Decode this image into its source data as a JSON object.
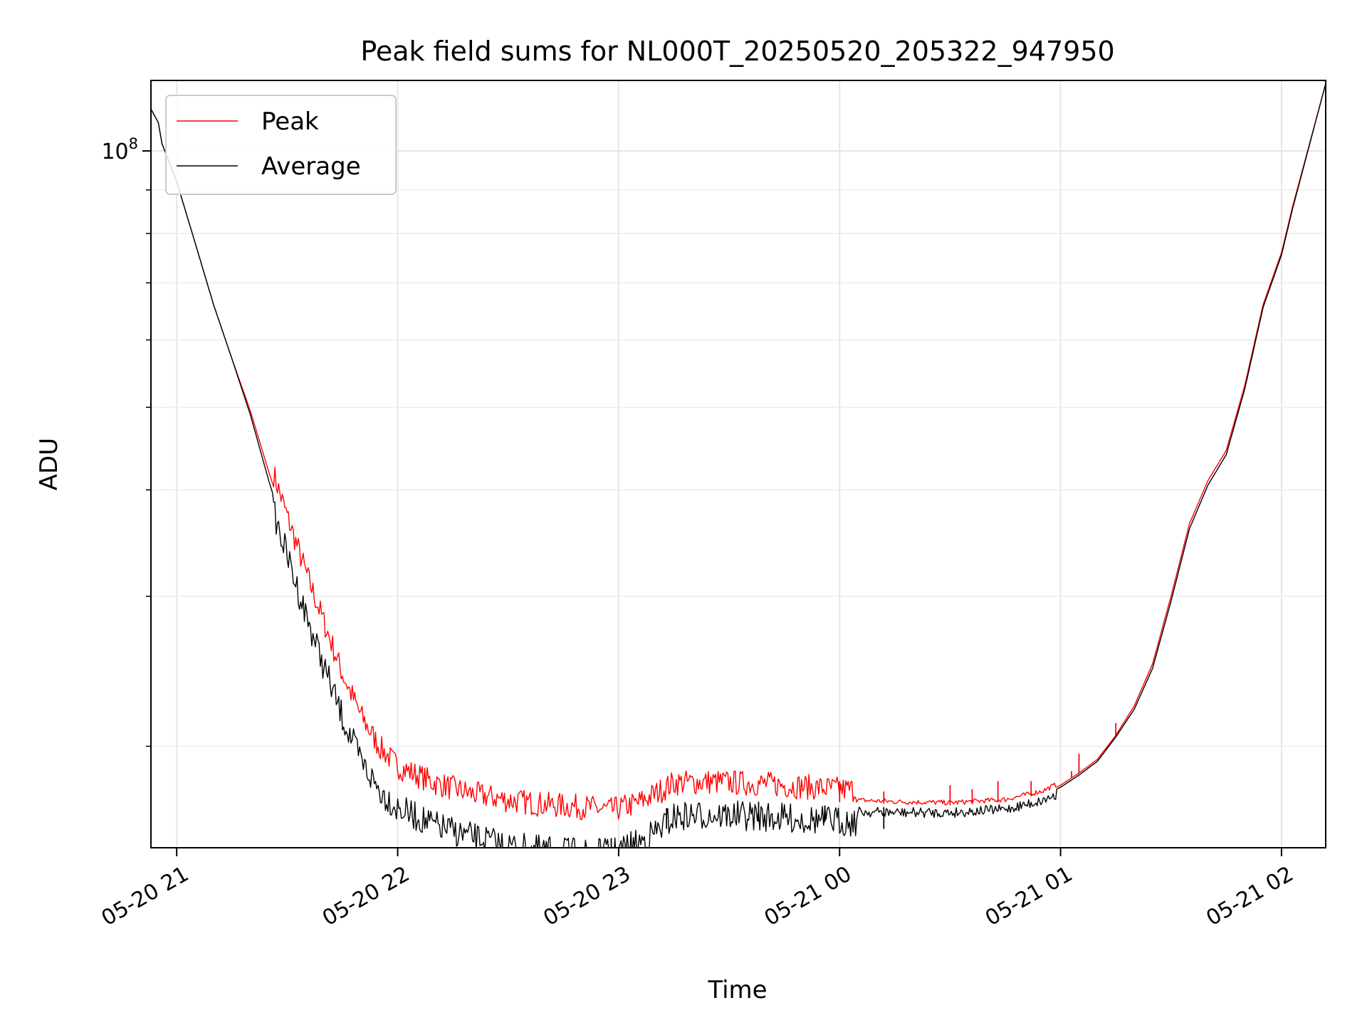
{
  "chart_data": {
    "type": "line",
    "title": "Peak field sums for NL000T_20250520_205322_947950",
    "xlabel": "Time",
    "ylabel": "ADU",
    "y_scale": "log",
    "ylim": [
      15200000,
      121000000
    ],
    "xlim": [
      "2025-05-20 20:53",
      "2025-05-21 02:12"
    ],
    "grid": true,
    "legend_position": "top-left",
    "x_ticks": [
      {
        "t": "2025-05-20 21:00",
        "label": "05-20 21"
      },
      {
        "t": "2025-05-20 22:00",
        "label": "05-20 22"
      },
      {
        "t": "2025-05-20 23:00",
        "label": "05-20 23"
      },
      {
        "t": "2025-05-21 00:00",
        "label": "05-21 00"
      },
      {
        "t": "2025-05-21 01:00",
        "label": "05-21 01"
      },
      {
        "t": "2025-05-21 02:00",
        "label": "05-21 02"
      }
    ],
    "y_major_ticks": [
      {
        "v": 100000000,
        "base": "10",
        "exp": "8"
      }
    ],
    "y_minor_ticks": [
      20000000,
      30000000,
      40000000,
      50000000,
      60000000,
      70000000,
      80000000,
      90000000
    ],
    "series": [
      {
        "name": "Peak",
        "color": "#ff0000",
        "points": [
          [
            "2025-05-20 20:53",
            112000000
          ],
          [
            "2025-05-20 20:55",
            108000000
          ],
          [
            "2025-05-20 20:56",
            102000000
          ],
          [
            "2025-05-20 21:00",
            92000000
          ],
          [
            "2025-05-20 21:05",
            78000000
          ],
          [
            "2025-05-20 21:10",
            66000000
          ],
          [
            "2025-05-20 21:15",
            57000000
          ],
          [
            "2025-05-20 21:20",
            49500000
          ],
          [
            "2025-05-20 21:25",
            42000000
          ],
          [
            "2025-05-20 21:30",
            36000000
          ],
          [
            "2025-05-20 21:35",
            31000000
          ],
          [
            "2025-05-20 21:40",
            27000000
          ],
          [
            "2025-05-20 21:45",
            23500000
          ],
          [
            "2025-05-20 21:50",
            21000000
          ],
          [
            "2025-05-20 21:55",
            19300000
          ],
          [
            "2025-05-20 22:00",
            18300000
          ],
          [
            "2025-05-20 22:10",
            17500000
          ],
          [
            "2025-05-20 22:20",
            17000000
          ],
          [
            "2025-05-20 22:30",
            16700000
          ],
          [
            "2025-05-20 22:40",
            16500000
          ],
          [
            "2025-05-20 22:50",
            16400000
          ],
          [
            "2025-05-20 22:58",
            16250000
          ],
          [
            "2025-05-20 23:05",
            16550000
          ],
          [
            "2025-05-20 23:10",
            17000000
          ],
          [
            "2025-05-20 23:15",
            17500000
          ],
          [
            "2025-05-20 23:25",
            17550000
          ],
          [
            "2025-05-20 23:40",
            17450000
          ],
          [
            "2025-05-21 00:00",
            17200000
          ],
          [
            "2025-05-21 00:15",
            17100000
          ],
          [
            "2025-05-21 00:30",
            17050000
          ],
          [
            "2025-05-21 00:45",
            17200000
          ],
          [
            "2025-05-21 00:55",
            17600000
          ],
          [
            "2025-05-21 01:00",
            18000000
          ],
          [
            "2025-05-21 01:05",
            18600000
          ],
          [
            "2025-05-21 01:10",
            19300000
          ],
          [
            "2025-05-21 01:15",
            20600000
          ],
          [
            "2025-05-21 01:20",
            22300000
          ],
          [
            "2025-05-21 01:25",
            25000000
          ],
          [
            "2025-05-21 01:30",
            30000000
          ],
          [
            "2025-05-21 01:35",
            36500000
          ],
          [
            "2025-05-21 01:40",
            41000000
          ],
          [
            "2025-05-21 01:45",
            44500000
          ],
          [
            "2025-05-21 01:50",
            53000000
          ],
          [
            "2025-05-21 01:55",
            66000000
          ],
          [
            "2025-05-21 02:00",
            76000000
          ],
          [
            "2025-05-21 02:03",
            86000000
          ],
          [
            "2025-05-21 02:12",
            120000000
          ]
        ],
        "spikes": [
          [
            "2025-05-21 00:00",
            18200000
          ],
          [
            "2025-05-21 00:12",
            17700000
          ],
          [
            "2025-05-21 00:30",
            18000000
          ],
          [
            "2025-05-21 00:36",
            17800000
          ],
          [
            "2025-05-21 00:43",
            18200000
          ],
          [
            "2025-05-21 00:52",
            18200000
          ],
          [
            "2025-05-21 01:03",
            18700000
          ],
          [
            "2025-05-21 01:05",
            19600000
          ],
          [
            "2025-05-21 01:15",
            21300000
          ]
        ]
      },
      {
        "name": "Average",
        "color": "#000000",
        "points": [
          [
            "2025-05-20 20:53",
            112000000
          ],
          [
            "2025-05-20 20:55",
            108000000
          ],
          [
            "2025-05-20 20:56",
            102000000
          ],
          [
            "2025-05-20 21:00",
            92000000
          ],
          [
            "2025-05-20 21:05",
            78000000
          ],
          [
            "2025-05-20 21:10",
            66000000
          ],
          [
            "2025-05-20 21:15",
            57000000
          ],
          [
            "2025-05-20 21:20",
            49000000
          ],
          [
            "2025-05-20 21:25",
            41000000
          ],
          [
            "2025-05-20 21:30",
            34800000
          ],
          [
            "2025-05-20 21:35",
            29800000
          ],
          [
            "2025-05-20 21:40",
            25800000
          ],
          [
            "2025-05-20 21:45",
            22500000
          ],
          [
            "2025-05-20 21:50",
            20000000
          ],
          [
            "2025-05-20 21:55",
            18500000
          ],
          [
            "2025-05-20 22:00",
            17600000
          ],
          [
            "2025-05-20 22:10",
            16800000
          ],
          [
            "2025-05-20 22:20",
            16300000
          ],
          [
            "2025-05-20 22:30",
            15900000
          ],
          [
            "2025-05-20 22:40",
            15700000
          ],
          [
            "2025-05-20 22:50",
            15600000
          ],
          [
            "2025-05-20 22:58",
            15600000
          ],
          [
            "2025-05-20 23:05",
            16000000
          ],
          [
            "2025-05-20 23:10",
            16500000
          ],
          [
            "2025-05-20 23:15",
            17200000
          ],
          [
            "2025-05-20 23:25",
            17300000
          ],
          [
            "2025-05-20 23:40",
            17200000
          ],
          [
            "2025-05-21 00:00",
            17000000
          ],
          [
            "2025-05-21 00:15",
            16950000
          ],
          [
            "2025-05-21 00:30",
            16950000
          ],
          [
            "2025-05-21 00:45",
            17100000
          ],
          [
            "2025-05-21 00:55",
            17500000
          ],
          [
            "2025-05-21 01:00",
            17900000
          ],
          [
            "2025-05-21 01:05",
            18500000
          ],
          [
            "2025-05-21 01:10",
            19200000
          ],
          [
            "2025-05-21 01:15",
            20500000
          ],
          [
            "2025-05-21 01:20",
            22100000
          ],
          [
            "2025-05-21 01:25",
            24700000
          ],
          [
            "2025-05-21 01:30",
            29600000
          ],
          [
            "2025-05-21 01:35",
            36000000
          ],
          [
            "2025-05-21 01:40",
            40500000
          ],
          [
            "2025-05-21 01:45",
            44000000
          ],
          [
            "2025-05-21 01:50",
            52500000
          ],
          [
            "2025-05-21 01:55",
            65500000
          ],
          [
            "2025-05-21 02:00",
            75500000
          ],
          [
            "2025-05-21 02:03",
            85500000
          ],
          [
            "2025-05-21 02:12",
            120000000
          ]
        ],
        "dips": [
          [
            "2025-05-20 22:58",
            15150000
          ],
          [
            "2025-05-20 23:13",
            16000000
          ],
          [
            "2025-05-20 23:38",
            16300000
          ],
          [
            "2025-05-20 23:56",
            16300000
          ],
          [
            "2025-05-21 00:12",
            16000000
          ]
        ]
      }
    ]
  }
}
